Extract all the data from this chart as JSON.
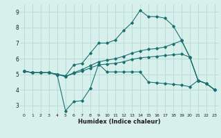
{
  "title": "",
  "xlabel": "Humidex (Indice chaleur)",
  "ylabel": "",
  "background_color": "#d8f0ec",
  "grid_color": "#b8dcd8",
  "line_color": "#1a7070",
  "xlim": [
    -0.5,
    23.5
  ],
  "ylim": [
    2.5,
    9.5
  ],
  "xticks": [
    0,
    1,
    2,
    3,
    4,
    5,
    6,
    7,
    8,
    9,
    10,
    11,
    12,
    13,
    14,
    15,
    16,
    17,
    18,
    19,
    20,
    21,
    22,
    23
  ],
  "yticks": [
    3,
    4,
    5,
    6,
    7,
    8,
    9
  ],
  "series": [
    {
      "x": [
        0,
        1,
        2,
        3,
        4,
        5,
        6,
        7,
        8,
        9,
        10,
        11,
        12,
        13,
        14,
        15,
        16,
        17,
        18,
        19,
        20,
        21,
        22,
        23
      ],
      "y": [
        5.2,
        5.1,
        5.1,
        5.1,
        5.0,
        4.9,
        5.6,
        5.7,
        6.35,
        7.0,
        7.0,
        7.2,
        7.8,
        8.3,
        9.1,
        8.7,
        8.7,
        8.6,
        8.1,
        7.2,
        6.1,
        4.6,
        4.4,
        4.0
      ]
    },
    {
      "x": [
        0,
        1,
        2,
        3,
        4,
        5,
        6,
        7,
        8,
        9,
        10,
        11,
        12,
        13,
        14,
        15,
        16,
        17,
        18,
        19,
        20,
        21,
        22,
        23
      ],
      "y": [
        5.2,
        5.1,
        5.1,
        5.1,
        5.0,
        4.85,
        5.1,
        5.3,
        5.55,
        5.8,
        5.9,
        6.0,
        6.15,
        6.35,
        6.5,
        6.6,
        6.65,
        6.75,
        6.95,
        7.15,
        6.1,
        4.6,
        4.4,
        4.0
      ]
    },
    {
      "x": [
        0,
        1,
        2,
        3,
        4,
        5,
        6,
        7,
        8,
        9,
        10,
        11,
        12,
        13,
        14,
        15,
        16,
        17,
        18,
        19,
        20,
        21,
        22,
        23
      ],
      "y": [
        5.2,
        5.1,
        5.1,
        5.1,
        5.0,
        4.85,
        5.05,
        5.2,
        5.4,
        5.6,
        5.65,
        5.7,
        5.8,
        5.95,
        6.05,
        6.1,
        6.15,
        6.2,
        6.25,
        6.3,
        6.1,
        4.6,
        4.4,
        4.0
      ]
    },
    {
      "x": [
        0,
        1,
        2,
        3,
        4,
        5,
        6,
        7,
        8,
        9,
        10,
        11,
        12,
        13,
        14,
        15,
        16,
        17,
        18,
        19,
        20,
        21,
        22,
        23
      ],
      "y": [
        5.2,
        5.1,
        5.1,
        5.1,
        4.95,
        2.65,
        3.25,
        3.3,
        4.1,
        5.65,
        5.15,
        5.15,
        5.15,
        5.15,
        5.15,
        4.5,
        4.45,
        4.4,
        4.35,
        4.3,
        4.2,
        4.6,
        4.4,
        4.0
      ]
    }
  ]
}
